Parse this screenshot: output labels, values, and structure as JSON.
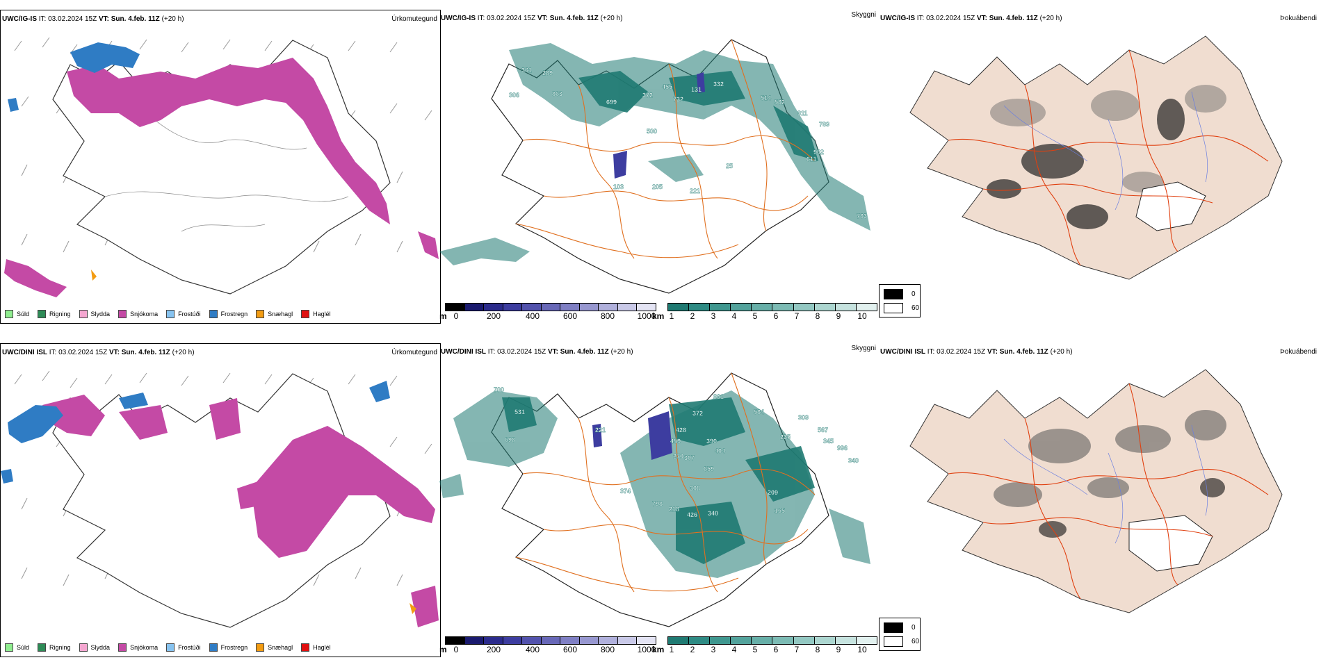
{
  "rows": [
    {
      "model": "UWC/IG-IS",
      "it_label": "IT:",
      "it_value": "03.02.2024 15Z",
      "vt_label": "VT:",
      "vt_value": "Sun. 4.feb. 11Z",
      "lead": "(+20 h)",
      "precip_panel_label": "Úrkomutegund",
      "ceiling_panel_label": "Skyggni",
      "fog_panel_label": "Þokuábendi",
      "ceiling_labels": [
        "361",
        "289",
        "306",
        "863",
        "699",
        "372",
        "455",
        "732",
        "131",
        "332",
        "514",
        "582",
        "311",
        "789",
        "500",
        "962",
        "611",
        "103",
        "205",
        "221",
        "25",
        "783"
      ]
    },
    {
      "model": "UWC/DINI ISL",
      "it_label": "IT:",
      "it_value": "03.02.2024 15Z",
      "vt_label": "VT:",
      "vt_value": "Sun. 4.feb. 11Z",
      "lead": "(+20 h)",
      "precip_panel_label": "Úrkomutegund",
      "ceiling_panel_label": "Skyggni",
      "fog_panel_label": "Þokuábendi",
      "ceiling_labels": [
        "700",
        "531",
        "698",
        "221",
        "372",
        "861",
        "584",
        "428",
        "459",
        "270",
        "307",
        "390",
        "404",
        "235",
        "309",
        "567",
        "345",
        "996",
        "340",
        "659",
        "308",
        "218",
        "426",
        "340",
        "209",
        "165",
        "798",
        "374"
      ]
    }
  ],
  "precip_legend": [
    {
      "label": "Súld",
      "color": "#90ee90"
    },
    {
      "label": "Rigning",
      "color": "#2e8b57"
    },
    {
      "label": "Slydda",
      "color": "#f4a6d0"
    },
    {
      "label": "Snjókoma",
      "color": "#c44aa5"
    },
    {
      "label": "Frostúði",
      "color": "#87c3f0"
    },
    {
      "label": "Frostregn",
      "color": "#2f7cc4"
    },
    {
      "label": "Snæhagl",
      "color": "#f39c12"
    },
    {
      "label": "Haglél",
      "color": "#e01010"
    }
  ],
  "height_scale": {
    "unit": "m",
    "ticks": [
      "0",
      "200",
      "400",
      "600",
      "800",
      "1000"
    ],
    "colors": [
      "#000000",
      "#1a1a6e",
      "#2b2b8c",
      "#3d3da0",
      "#5252ad",
      "#6868b8",
      "#7f7fc4",
      "#9797d0",
      "#b0b0dc",
      "#c9c9e8",
      "#e4e4f4"
    ]
  },
  "visibility_scale": {
    "unit": "km",
    "ticks": [
      "1",
      "2",
      "3",
      "4",
      "5",
      "6",
      "7",
      "8",
      "9",
      "10"
    ],
    "colors": [
      "#1f7a72",
      "#2e8b84",
      "#3f978f",
      "#53a39c",
      "#67afa8",
      "#7cbbb4",
      "#93c8c2",
      "#acd6d0",
      "#c6e3df",
      "#e2f1ef"
    ]
  },
  "fog_legend": [
    {
      "label": "0",
      "color": "#000000"
    },
    {
      "label": "60",
      "color": "#ffffff"
    }
  ],
  "colors": {
    "snow": "#c44aa5",
    "freezing_rain": "#2f7cc4",
    "ceiling_teal": "#1f7a72",
    "roads": "#e07020",
    "fog_land": "#f0ddd0",
    "rivers": "#6b7fe0"
  }
}
